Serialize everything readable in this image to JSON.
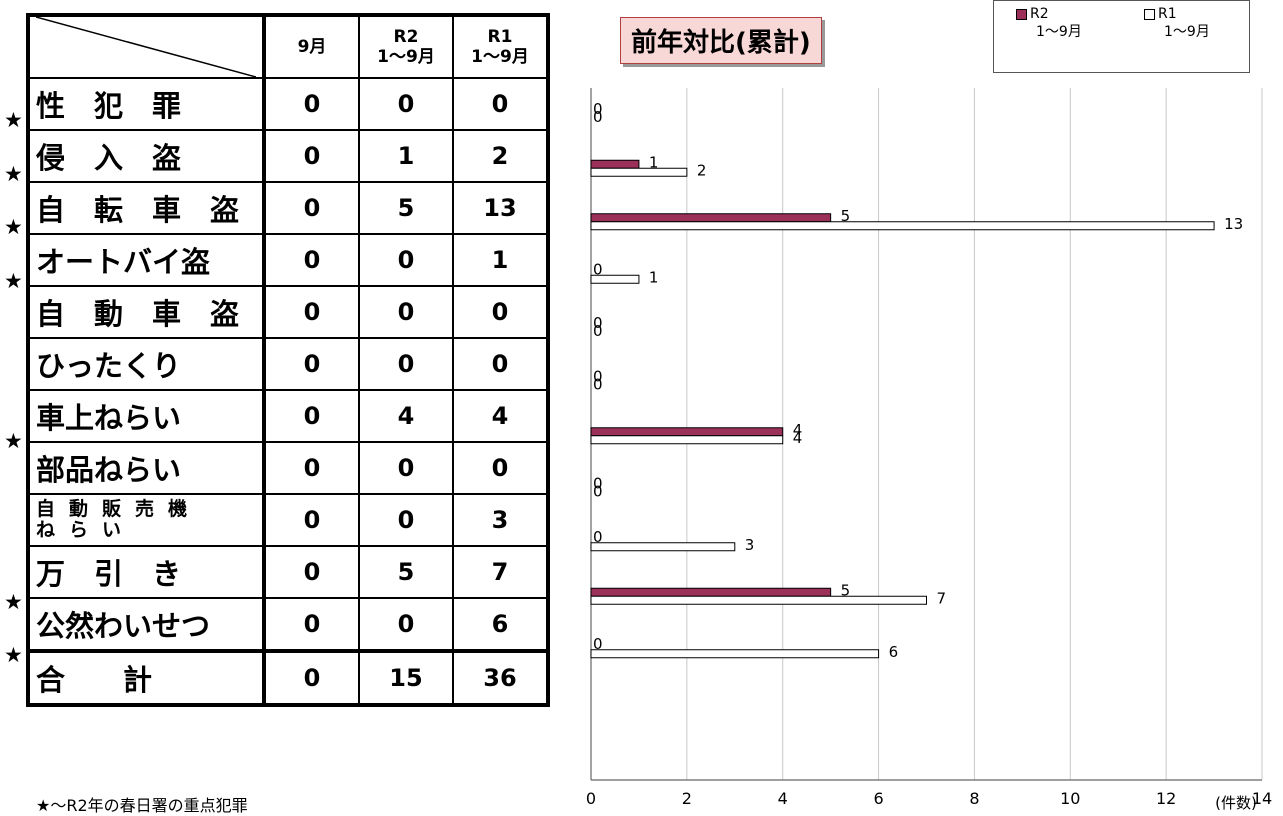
{
  "table": {
    "header": {
      "col1": "9月",
      "col2": "R2\n1〜9月",
      "col3": "R1\n1〜9月"
    },
    "rows": [
      {
        "star": "★",
        "label": "性　犯　罪",
        "v1": "0",
        "v2": "0",
        "v3": "0"
      },
      {
        "star": "★",
        "label": "侵　入　盗",
        "v1": "0",
        "v2": "1",
        "v3": "2"
      },
      {
        "star": "★",
        "label": "自　転　車　盗",
        "v1": "0",
        "v2": "5",
        "v3": "13"
      },
      {
        "star": "★",
        "label": "オートバイ盗",
        "v1": "0",
        "v2": "0",
        "v3": "1"
      },
      {
        "star": "",
        "label": "自　動　車　盗",
        "v1": "0",
        "v2": "0",
        "v3": "0"
      },
      {
        "star": "",
        "label": "ひったくり",
        "v1": "0",
        "v2": "0",
        "v3": "0"
      },
      {
        "star": "★",
        "label": "車上ねらい",
        "v1": "0",
        "v2": "4",
        "v3": "4"
      },
      {
        "star": "",
        "label": "部品ねらい",
        "v1": "0",
        "v2": "0",
        "v3": "0"
      },
      {
        "star": "",
        "label": "自動販売機\nねらい",
        "v1": "0",
        "v2": "0",
        "v3": "3"
      },
      {
        "star": "★",
        "label": "万　引　き",
        "v1": "0",
        "v2": "5",
        "v3": "7"
      },
      {
        "star": "★",
        "label": "公然わいせつ",
        "v1": "0",
        "v2": "0",
        "v3": "6"
      }
    ],
    "total": {
      "label": "合　　計",
      "v1": "0",
      "v2": "15",
      "v3": "36"
    }
  },
  "footnote": "★～R2年の春日署の重点犯罪",
  "chart_title": "前年対比(累計)",
  "legend": {
    "r2_label": "R2",
    "r2_sub": "1〜9月",
    "r1_label": "R1",
    "r1_sub": "1〜9月",
    "r2_color": "#9b3158",
    "r1_color": "#ffffff"
  },
  "chart_data": {
    "type": "bar",
    "orientation": "horizontal",
    "categories": [
      "性犯罪",
      "侵入盗",
      "自転車盗",
      "オートバイ盗",
      "自動車盗",
      "ひったくり",
      "車上ねらい",
      "部品ねらい",
      "自動販売機ねらい",
      "万引き",
      "公然わいせつ"
    ],
    "series": [
      {
        "name": "R2 1〜9月",
        "values": [
          0,
          1,
          5,
          0,
          0,
          0,
          4,
          0,
          0,
          5,
          0
        ],
        "color": "#9b3158"
      },
      {
        "name": "R1 1〜9月",
        "values": [
          0,
          2,
          13,
          1,
          0,
          0,
          4,
          0,
          3,
          7,
          6
        ],
        "color": "#ffffff"
      }
    ],
    "xlim": [
      0,
      14
    ],
    "xticks": [
      0,
      2,
      4,
      6,
      8,
      10,
      12,
      14
    ],
    "xunit": "(件数)",
    "grid": true,
    "legend_position": "top-right"
  }
}
